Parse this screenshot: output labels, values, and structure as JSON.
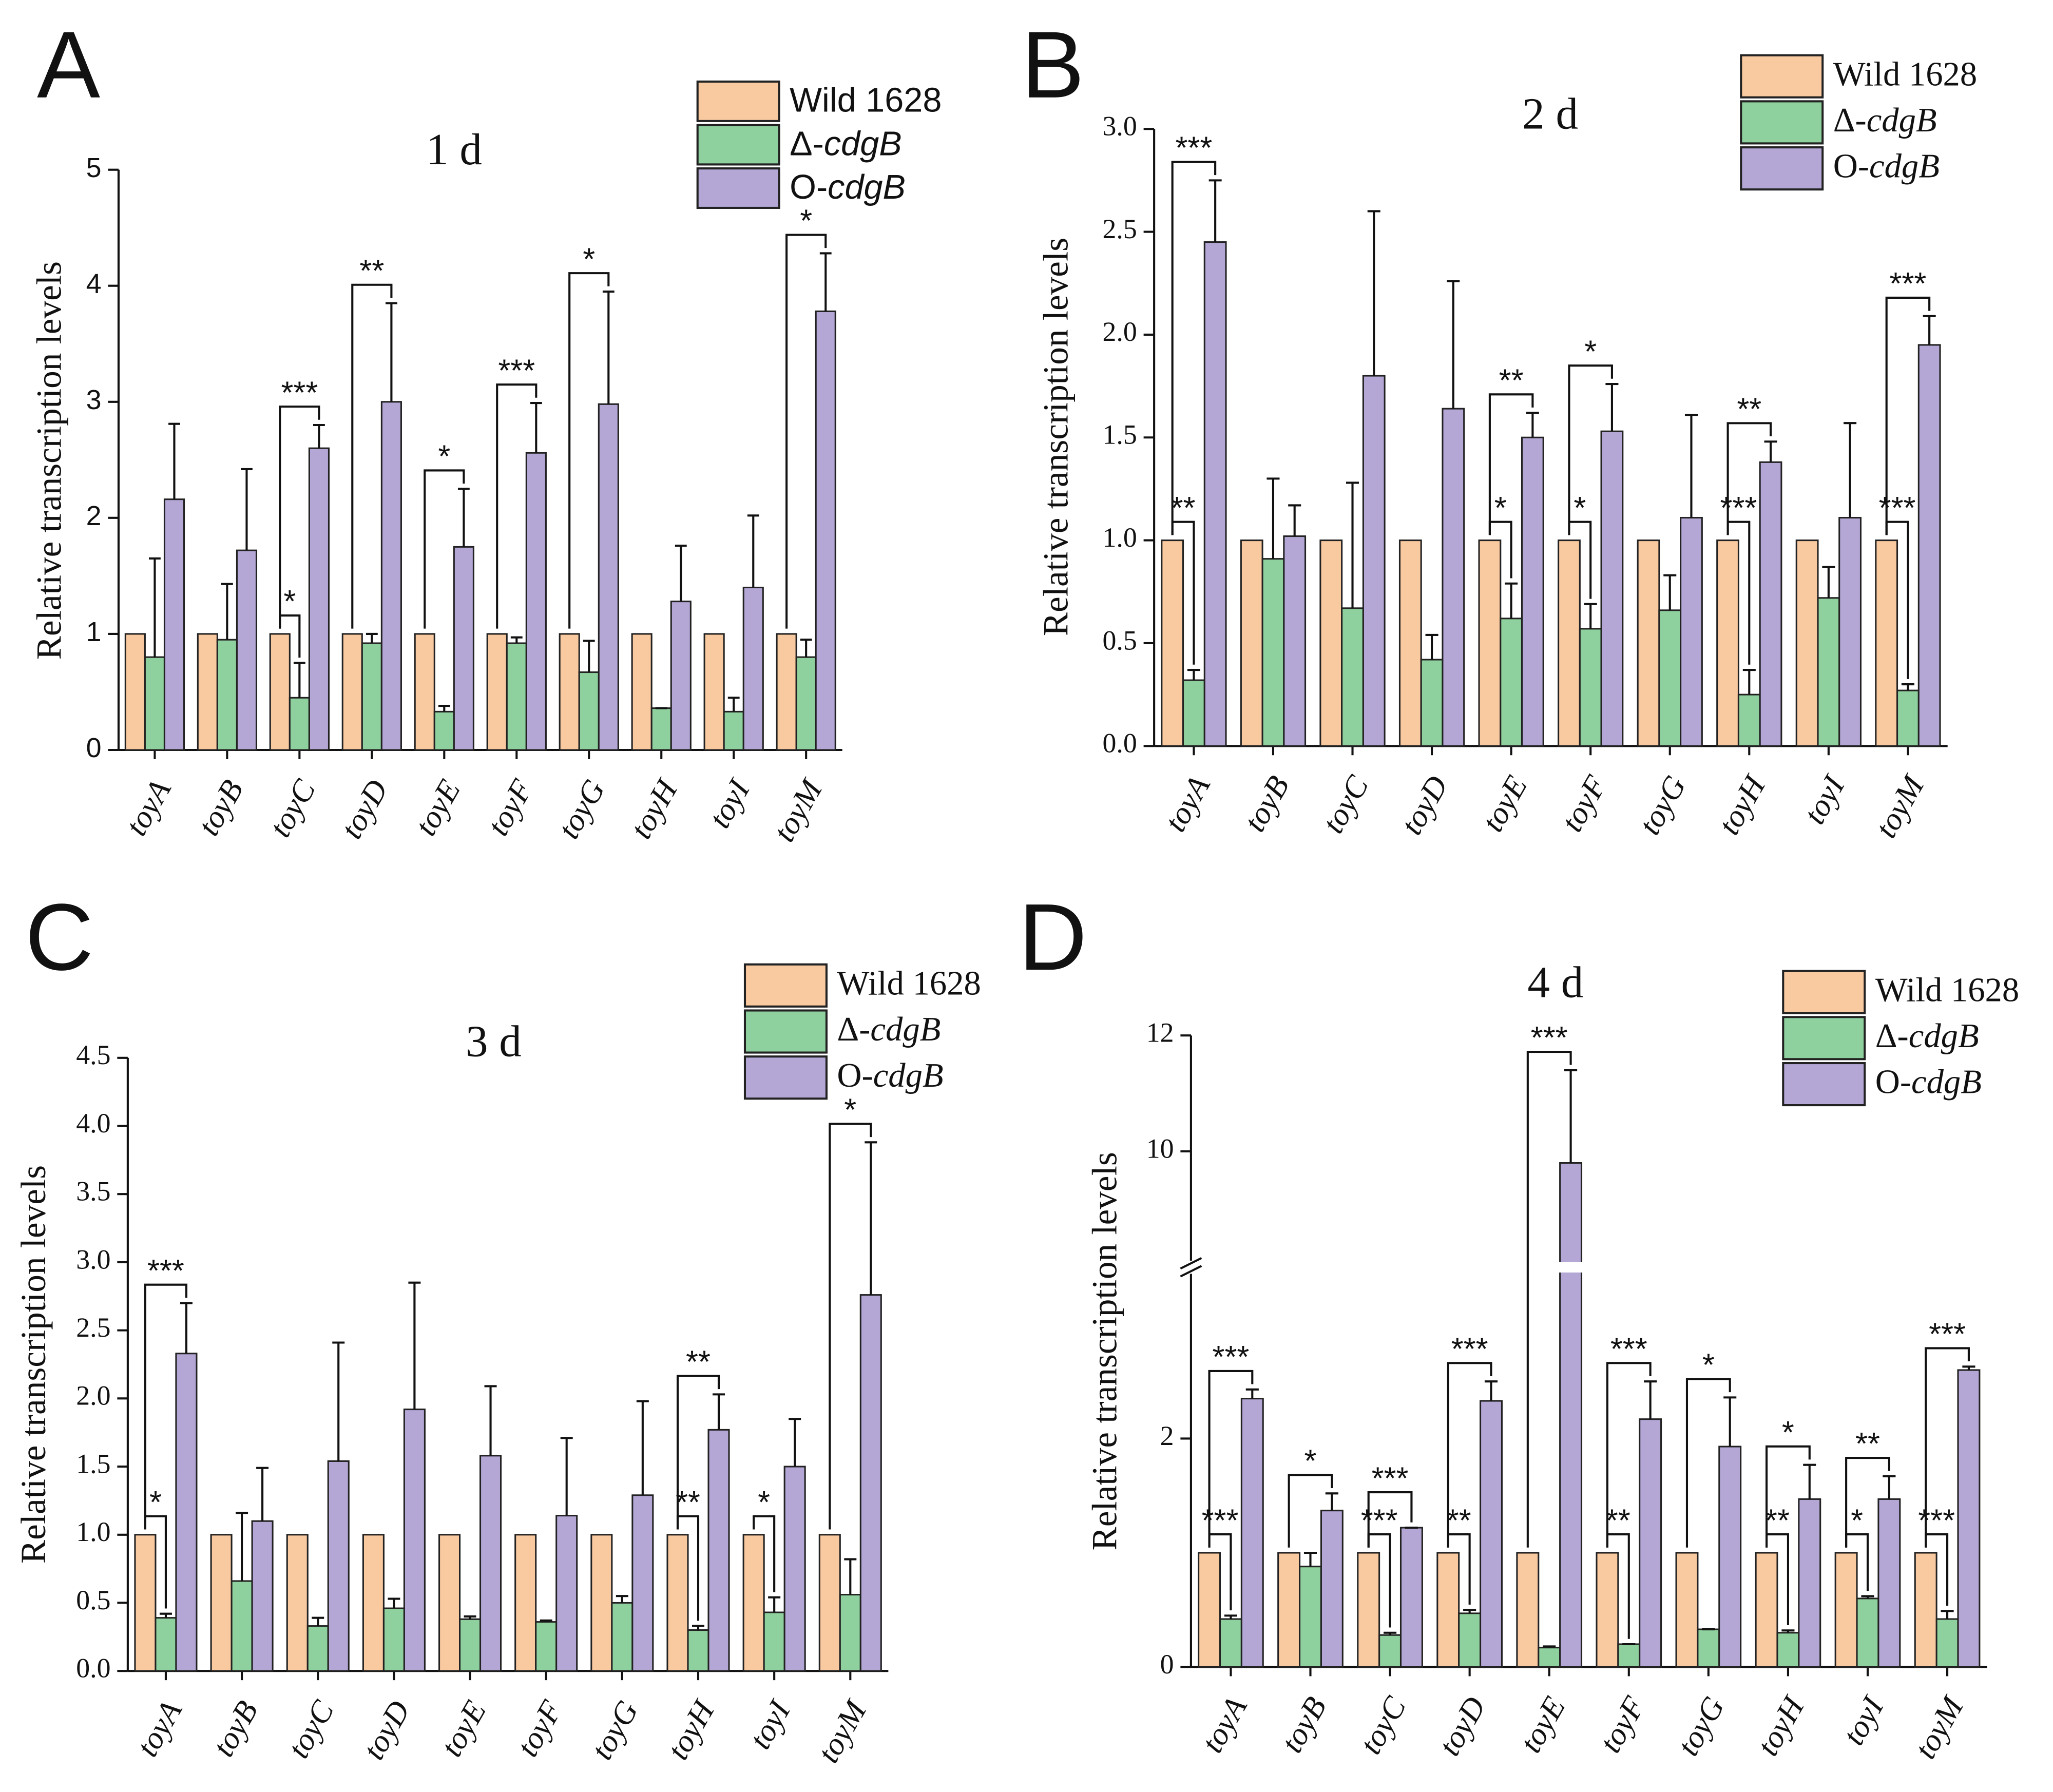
{
  "chart_data": [
    {
      "type": "bar",
      "panel": "A",
      "title": "1 d",
      "ylabel": "Relative transcription levels",
      "categories": [
        "toyA",
        "toyB",
        "toyC",
        "toyD",
        "toyE",
        "toyF",
        "toyG",
        "toyH",
        "toyI",
        "toyM"
      ],
      "series": [
        {
          "name": "Wild 1628",
          "color": "#f9c9a0",
          "values": [
            1,
            1,
            1,
            1,
            1,
            1,
            1,
            1,
            1,
            1
          ]
        },
        {
          "name": "Δ-cdgB",
          "color": "#8fd19e",
          "values": [
            0.8,
            0.95,
            0.45,
            0.92,
            0.33,
            0.92,
            0.67,
            0.36,
            0.33,
            0.8
          ],
          "errors": [
            0.85,
            0.48,
            0.3,
            0.08,
            0.05,
            0.05,
            0.27,
            0,
            0.12,
            0.15
          ]
        },
        {
          "name": "O-cdgB",
          "color": "#b4a7d6",
          "values": [
            2.16,
            1.72,
            2.6,
            3.0,
            1.75,
            2.56,
            2.98,
            1.28,
            1.4,
            3.78
          ],
          "errors": [
            0.65,
            0.7,
            0.2,
            0.85,
            0.5,
            0.43,
            0.97,
            0.48,
            0.62,
            0.5
          ]
        }
      ],
      "annotations": [
        {
          "text": "*",
          "category": 2,
          "series": [
            0,
            1
          ]
        },
        {
          "text": "***",
          "category": 2,
          "series": [
            0,
            2
          ]
        },
        {
          "text": "**",
          "category": 3,
          "series": [
            0,
            2
          ]
        },
        {
          "text": "*",
          "category": 4,
          "series": [
            0,
            2
          ]
        },
        {
          "text": "***",
          "category": 5,
          "series": [
            0,
            2
          ]
        },
        {
          "text": "*",
          "category": 6,
          "series": [
            0,
            2
          ]
        },
        {
          "text": "*",
          "category": 9,
          "series": [
            0,
            2
          ]
        }
      ],
      "ylim": [
        0,
        5
      ],
      "yticks": [
        0,
        1,
        2,
        3,
        4,
        5
      ]
    },
    {
      "type": "bar",
      "panel": "B",
      "title": "2 d",
      "ylabel": "Relative transcription levels",
      "categories": [
        "toyA",
        "toyB",
        "toyC",
        "toyD",
        "toyE",
        "toyF",
        "toyG",
        "toyH",
        "toyI",
        "toyM"
      ],
      "series": [
        {
          "name": "Wild 1628",
          "color": "#f9c9a0",
          "values": [
            1,
            1,
            1,
            1,
            1,
            1,
            1,
            1,
            1,
            1
          ]
        },
        {
          "name": "Δ-cdgB",
          "color": "#8fd19e",
          "values": [
            0.32,
            0.91,
            0.67,
            0.42,
            0.62,
            0.57,
            0.66,
            0.25,
            0.72,
            0.27
          ],
          "errors": [
            0.05,
            0.39,
            0.61,
            0.12,
            0.17,
            0.12,
            0.17,
            0.12,
            0.15,
            0.03
          ]
        },
        {
          "name": "O-cdgB",
          "color": "#b4a7d6",
          "values": [
            2.45,
            1.02,
            1.8,
            1.64,
            1.5,
            1.53,
            1.11,
            1.38,
            1.11,
            1.95
          ],
          "errors": [
            0.3,
            0.15,
            0.8,
            0.62,
            0.12,
            0.23,
            0.5,
            0.1,
            0.46,
            0.14
          ]
        }
      ],
      "annotations": [
        {
          "text": "**",
          "category": 0,
          "series": [
            0,
            1
          ]
        },
        {
          "text": "***",
          "category": 0,
          "series": [
            0,
            2
          ]
        },
        {
          "text": "*",
          "category": 4,
          "series": [
            0,
            1
          ]
        },
        {
          "text": "**",
          "category": 4,
          "series": [
            0,
            2
          ]
        },
        {
          "text": "*",
          "category": 5,
          "series": [
            0,
            1
          ]
        },
        {
          "text": "*",
          "category": 5,
          "series": [
            0,
            2
          ]
        },
        {
          "text": "***",
          "category": 7,
          "series": [
            0,
            1
          ]
        },
        {
          "text": "**",
          "category": 7,
          "series": [
            0,
            2
          ]
        },
        {
          "text": "***",
          "category": 9,
          "series": [
            0,
            1
          ]
        },
        {
          "text": "***",
          "category": 9,
          "series": [
            0,
            2
          ]
        }
      ],
      "ylim": [
        0,
        3
      ],
      "yticks": [
        {
          "value": 0,
          "label": "0.0"
        },
        0.5,
        {
          "value": 1,
          "label": "1.0"
        },
        1.5,
        {
          "value": 2,
          "label": "2.0"
        },
        2.5,
        {
          "value": 3,
          "label": "3.0"
        }
      ]
    },
    {
      "type": "bar",
      "panel": "C",
      "title": "3 d",
      "ylabel": "Relative transcription levels",
      "categories": [
        "toyA",
        "toyB",
        "toyC",
        "toyD",
        "toyE",
        "toyF",
        "toyG",
        "toyH",
        "toyI",
        "toyM"
      ],
      "series": [
        {
          "name": "Wild 1628",
          "color": "#f9c9a0",
          "values": [
            1,
            1,
            1,
            1,
            1,
            1,
            1,
            1,
            1,
            1
          ]
        },
        {
          "name": "Δ-cdgB",
          "color": "#8fd19e",
          "values": [
            0.39,
            0.66,
            0.33,
            0.46,
            0.38,
            0.36,
            0.5,
            0.3,
            0.43,
            0.56
          ],
          "errors": [
            0.03,
            0.5,
            0.06,
            0.07,
            0.02,
            0.01,
            0.05,
            0.03,
            0.11,
            0.26
          ]
        },
        {
          "name": "O-cdgB",
          "color": "#b4a7d6",
          "values": [
            2.33,
            1.1,
            1.54,
            1.92,
            1.58,
            1.14,
            1.29,
            1.77,
            1.5,
            2.76
          ],
          "errors": [
            0.37,
            0.39,
            0.87,
            0.93,
            0.51,
            0.57,
            0.69,
            0.26,
            0.35,
            1.12
          ]
        }
      ],
      "annotations": [
        {
          "text": "*",
          "category": 0,
          "series": [
            0,
            1
          ]
        },
        {
          "text": "***",
          "category": 0,
          "series": [
            0,
            2
          ]
        },
        {
          "text": "**",
          "category": 7,
          "series": [
            0,
            1
          ]
        },
        {
          "text": "**",
          "category": 7,
          "series": [
            0,
            2
          ]
        },
        {
          "text": "*",
          "category": 8,
          "series": [
            0,
            1
          ]
        },
        {
          "text": "*",
          "category": 9,
          "series": [
            0,
            2
          ]
        }
      ],
      "ylim": [
        0,
        4.5
      ],
      "yticks": [
        {
          "value": 0,
          "label": "0.0"
        },
        0.5,
        {
          "value": 1,
          "label": "1.0"
        },
        1.5,
        {
          "value": 2,
          "label": "2.0"
        },
        2.5,
        {
          "value": 3,
          "label": "3.0"
        },
        3.5,
        {
          "value": 4,
          "label": "4.0"
        },
        4.5
      ]
    },
    {
      "type": "bar",
      "panel": "D",
      "title": "4 d",
      "ylabel": "Relative transcription levels",
      "categories": [
        "toyA",
        "toyB",
        "toyC",
        "toyD",
        "toyE",
        "toyF",
        "toyG",
        "toyH",
        "toyI",
        "toyM"
      ],
      "series": [
        {
          "name": "Wild 1628",
          "color": "#f9c9a0",
          "values": [
            1,
            1,
            1,
            1,
            1,
            1,
            1,
            1,
            1,
            1
          ]
        },
        {
          "name": "Δ-cdgB",
          "color": "#8fd19e",
          "values": [
            0.42,
            0.88,
            0.28,
            0.47,
            0.17,
            0.2,
            0.33,
            0.3,
            0.6,
            0.42
          ],
          "errors": [
            0.03,
            0.12,
            0.02,
            0.03,
            0.01,
            0,
            0,
            0.02,
            0.02,
            0.07
          ]
        },
        {
          "name": "O-cdgB",
          "color": "#b4a7d6",
          "values": [
            2.35,
            1.37,
            1.22,
            2.33,
            9.8,
            2.17,
            1.93,
            1.47,
            1.47,
            2.6
          ],
          "errors": [
            0.08,
            0.15,
            0,
            0.17,
            1.6,
            0.33,
            0.43,
            0.3,
            0.2,
            0.03
          ]
        }
      ],
      "annotations": [
        {
          "text": "***",
          "category": 0,
          "series": [
            0,
            1
          ]
        },
        {
          "text": "***",
          "category": 0,
          "series": [
            0,
            2
          ]
        },
        {
          "text": "*",
          "category": 1,
          "series": [
            0,
            2
          ]
        },
        {
          "text": "***",
          "category": 2,
          "series": [
            0,
            1
          ]
        },
        {
          "text": "***",
          "category": 2,
          "series": [
            0,
            2
          ]
        },
        {
          "text": "**",
          "category": 3,
          "series": [
            0,
            1
          ]
        },
        {
          "text": "***",
          "category": 3,
          "series": [
            0,
            2
          ]
        },
        {
          "text": "***",
          "category": 4,
          "series": [
            0,
            2
          ]
        },
        {
          "text": "**",
          "category": 5,
          "series": [
            0,
            1
          ]
        },
        {
          "text": "***",
          "category": 5,
          "series": [
            0,
            2
          ]
        },
        {
          "text": "*",
          "category": 6,
          "series": [
            0,
            2
          ]
        },
        {
          "text": "**",
          "category": 7,
          "series": [
            0,
            1
          ]
        },
        {
          "text": "*",
          "category": 7,
          "series": [
            0,
            2
          ]
        },
        {
          "text": "*",
          "category": 8,
          "series": [
            0,
            1
          ]
        },
        {
          "text": "**",
          "category": 8,
          "series": [
            0,
            2
          ]
        },
        {
          "text": "***",
          "category": 9,
          "series": [
            0,
            1
          ]
        },
        {
          "text": "***",
          "category": 9,
          "series": [
            0,
            2
          ]
        }
      ],
      "ylim": [
        0,
        12
      ],
      "ybreak": [
        3.5,
        8
      ],
      "yticks": [
        0,
        2,
        10,
        12
      ]
    }
  ]
}
